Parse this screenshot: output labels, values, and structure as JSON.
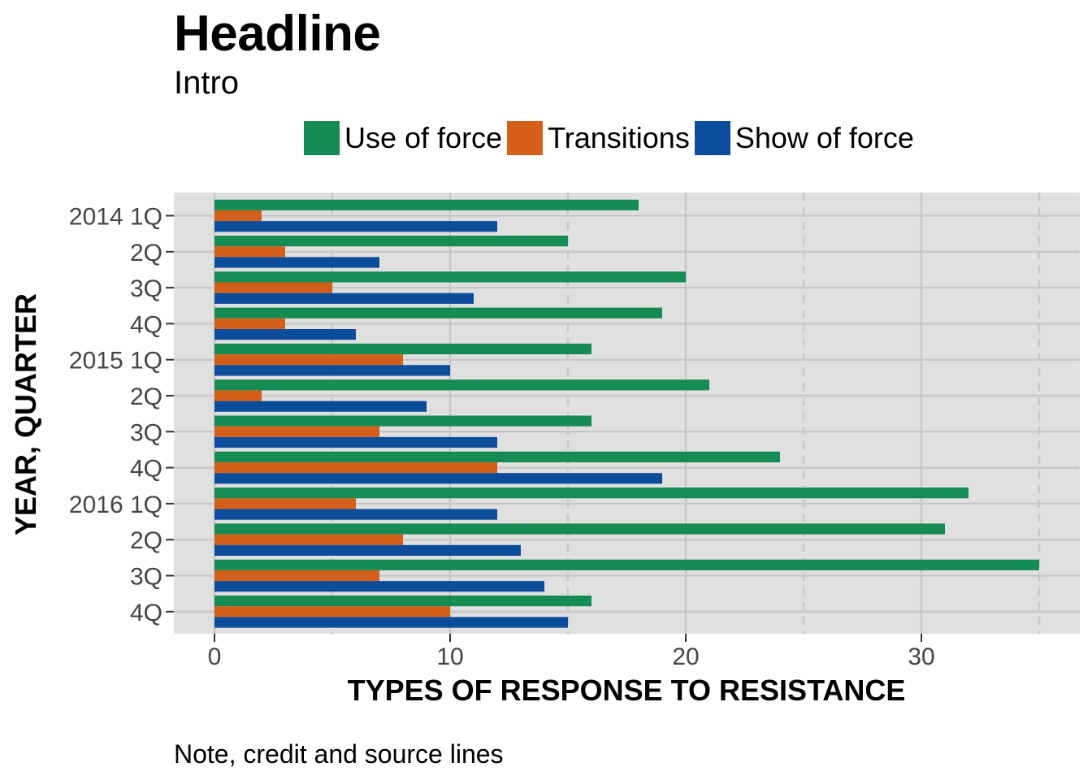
{
  "headline": "Headline",
  "intro": "Intro",
  "note": "Note, credit and source lines",
  "colors": {
    "use_of_force": "#168c55",
    "transitions": "#d45f1a",
    "show_of_force": "#0b4d9b",
    "panel": "#e0e0e0",
    "grid": "#c8c8c8"
  },
  "chart_data": {
    "type": "bar",
    "orientation": "horizontal",
    "categories": [
      "2014 1Q",
      "2Q",
      "3Q",
      "4Q",
      "2015 1Q",
      "2Q",
      "3Q",
      "4Q",
      "2016 1Q",
      "2Q",
      "3Q",
      "4Q"
    ],
    "series": [
      {
        "name": "Use of force",
        "color": "#168c55",
        "values": [
          18,
          15,
          20,
          19,
          16,
          21,
          16,
          24,
          32,
          31,
          35,
          16
        ]
      },
      {
        "name": "Transitions",
        "color": "#d45f1a",
        "values": [
          2,
          3,
          5,
          3,
          8,
          2,
          7,
          12,
          6,
          8,
          7,
          10
        ]
      },
      {
        "name": "Show of force",
        "color": "#0b4d9b",
        "values": [
          12,
          7,
          11,
          6,
          10,
          9,
          12,
          19,
          12,
          13,
          14,
          15
        ]
      }
    ],
    "xlabel": "TYPES OF RESPONSE TO RESISTANCE",
    "ylabel": "YEAR, QUARTER",
    "xlim": [
      0,
      36
    ],
    "xticks": [
      0,
      10,
      20,
      30
    ],
    "xtick_labels": [
      "0",
      "10",
      "20",
      "30"
    ],
    "legend_position": "top",
    "grid": true
  }
}
